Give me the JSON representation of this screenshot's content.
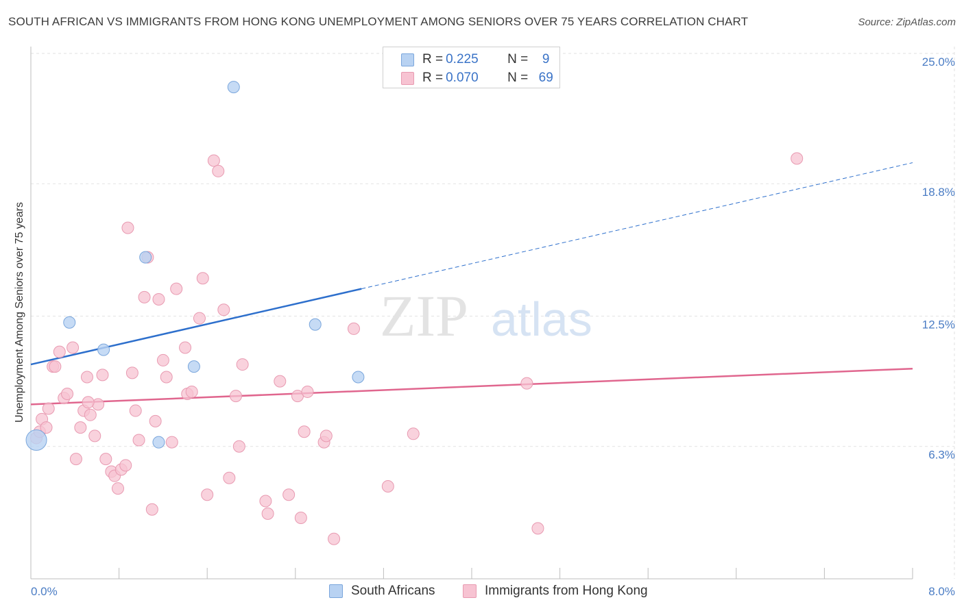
{
  "title": "SOUTH AFRICAN VS IMMIGRANTS FROM HONG KONG UNEMPLOYMENT AMONG SENIORS OVER 75 YEARS CORRELATION CHART",
  "source": "Source: ZipAtlas.com",
  "watermark": {
    "zip": "ZIP",
    "atlas": "atlas"
  },
  "colors": {
    "blue_fill": "#b8d2f2",
    "blue_stroke": "#7aa6dc",
    "blue_line": "#2d6fcc",
    "pink_fill": "#f7c3d2",
    "pink_stroke": "#e89ab1",
    "pink_line": "#e0668e",
    "tick_text": "#4a7cc4",
    "grid": "#e2e2e2"
  },
  "legend": {
    "rows": [
      {
        "series": "South Africans",
        "r_label": "R =",
        "r_value": "0.225",
        "n_label": "N =",
        "n_value": "9"
      },
      {
        "series": "Immigrants from Hong Kong",
        "r_label": "R =",
        "r_value": "0.070",
        "n_label": "N =",
        "n_value": "69"
      }
    ]
  },
  "bottom_legend": [
    "South Africans",
    "Immigrants from Hong Kong"
  ],
  "chart_data": {
    "type": "scatter",
    "title": "SOUTH AFRICAN VS IMMIGRANTS FROM HONG KONG UNEMPLOYMENT AMONG SENIORS OVER 75 YEARS CORRELATION CHART",
    "xlabel": "",
    "ylabel": "Unemployment Among Seniors over 75 years",
    "xlim": [
      0.0,
      8.0
    ],
    "ylim": [
      0.0,
      25.0
    ],
    "x_tick_labels": [
      "0.0%",
      "8.0%"
    ],
    "y_ticks": [
      6.3,
      12.5,
      18.8,
      25.0
    ],
    "y_tick_labels": [
      "6.3%",
      "12.5%",
      "18.8%",
      "25.0%"
    ],
    "grid": true,
    "series": [
      {
        "name": "South Africans",
        "color": "blue",
        "points": [
          [
            0.05,
            6.6
          ],
          [
            0.35,
            12.2
          ],
          [
            0.66,
            10.9
          ],
          [
            1.04,
            15.3
          ],
          [
            1.16,
            6.5
          ],
          [
            1.48,
            10.1
          ],
          [
            1.84,
            23.4
          ],
          [
            2.58,
            12.1
          ],
          [
            2.97,
            9.6
          ]
        ],
        "trend": {
          "x0": 0.0,
          "y0": 10.2,
          "x1": 3.0,
          "y1": 13.8,
          "dash_to_x": 8.0,
          "dash_to_y": 19.8
        }
      },
      {
        "name": "Immigrants from Hong Kong",
        "color": "pink",
        "points": [
          [
            0.05,
            6.7
          ],
          [
            0.08,
            7.0
          ],
          [
            0.1,
            7.6
          ],
          [
            0.14,
            7.2
          ],
          [
            0.16,
            8.1
          ],
          [
            0.2,
            10.1
          ],
          [
            0.22,
            10.1
          ],
          [
            0.26,
            10.8
          ],
          [
            0.3,
            8.6
          ],
          [
            0.33,
            8.8
          ],
          [
            0.38,
            11.0
          ],
          [
            0.41,
            5.7
          ],
          [
            0.45,
            7.2
          ],
          [
            0.48,
            8.0
          ],
          [
            0.51,
            9.6
          ],
          [
            0.54,
            7.8
          ],
          [
            0.58,
            6.8
          ],
          [
            0.61,
            8.3
          ],
          [
            0.65,
            9.7
          ],
          [
            0.68,
            5.7
          ],
          [
            0.73,
            5.1
          ],
          [
            0.76,
            4.9
          ],
          [
            0.79,
            4.3
          ],
          [
            0.82,
            5.2
          ],
          [
            0.86,
            5.4
          ],
          [
            0.88,
            16.7
          ],
          [
            0.92,
            9.8
          ],
          [
            0.95,
            8.0
          ],
          [
            0.98,
            6.6
          ],
          [
            1.03,
            13.4
          ],
          [
            1.06,
            15.3
          ],
          [
            1.1,
            3.3
          ],
          [
            1.13,
            7.5
          ],
          [
            1.16,
            13.3
          ],
          [
            1.2,
            10.4
          ],
          [
            1.23,
            9.6
          ],
          [
            1.28,
            6.5
          ],
          [
            1.32,
            13.8
          ],
          [
            1.4,
            11.0
          ],
          [
            1.42,
            8.8
          ],
          [
            1.46,
            8.9
          ],
          [
            1.53,
            12.4
          ],
          [
            1.56,
            14.3
          ],
          [
            1.6,
            4.0
          ],
          [
            1.66,
            19.9
          ],
          [
            1.7,
            19.4
          ],
          [
            1.75,
            12.8
          ],
          [
            1.8,
            4.8
          ],
          [
            1.86,
            8.7
          ],
          [
            1.89,
            6.3
          ],
          [
            1.92,
            10.2
          ],
          [
            2.13,
            3.7
          ],
          [
            2.15,
            3.1
          ],
          [
            2.26,
            9.4
          ],
          [
            2.34,
            4.0
          ],
          [
            2.42,
            8.7
          ],
          [
            2.45,
            2.9
          ],
          [
            2.48,
            7.0
          ],
          [
            2.51,
            8.9
          ],
          [
            2.66,
            6.5
          ],
          [
            2.68,
            6.8
          ],
          [
            2.75,
            1.9
          ],
          [
            2.93,
            11.9
          ],
          [
            3.24,
            4.4
          ],
          [
            3.47,
            6.9
          ],
          [
            4.5,
            9.3
          ],
          [
            4.6,
            2.4
          ],
          [
            6.95,
            20.0
          ],
          [
            0.52,
            8.4
          ]
        ],
        "trend": {
          "x0": 0.0,
          "y0": 8.3,
          "x1": 8.0,
          "y1": 10.0
        }
      }
    ]
  }
}
